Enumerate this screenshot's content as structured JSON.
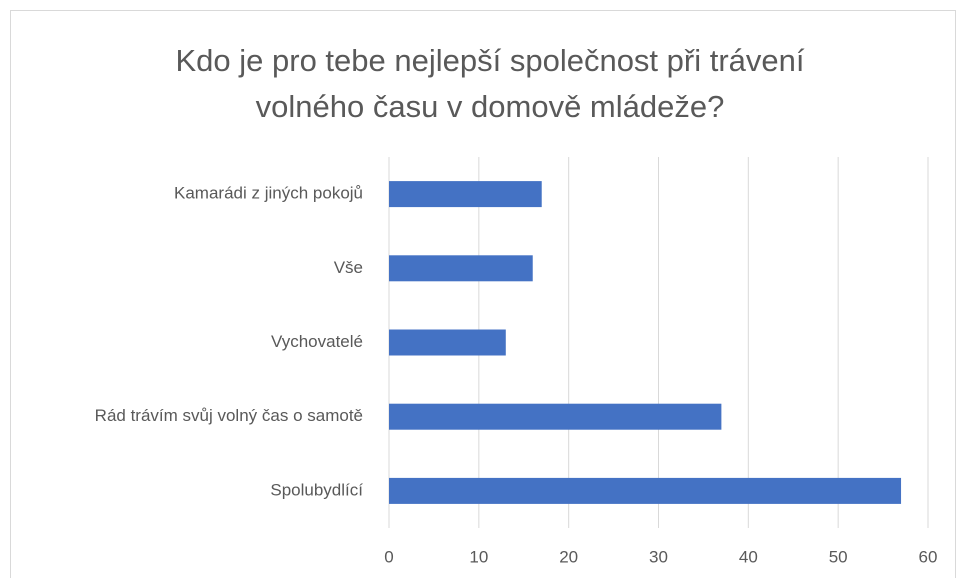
{
  "chart_data": {
    "type": "barh",
    "title": "Kdo je pro tebe nejlepší společnost při trávení volného času v domově mládeže?",
    "categories": [
      "Kamarádi z jiných pokojů",
      "Vše",
      "Vychovatelé",
      "Rád trávím svůj volný čas o samotě",
      "Spolubydlící"
    ],
    "values": [
      17,
      16,
      13,
      37,
      57
    ],
    "color": "#4472c4",
    "xlim": [
      0,
      60
    ],
    "xticks": [
      0,
      10,
      20,
      30,
      40,
      50,
      60
    ],
    "grid": true
  }
}
